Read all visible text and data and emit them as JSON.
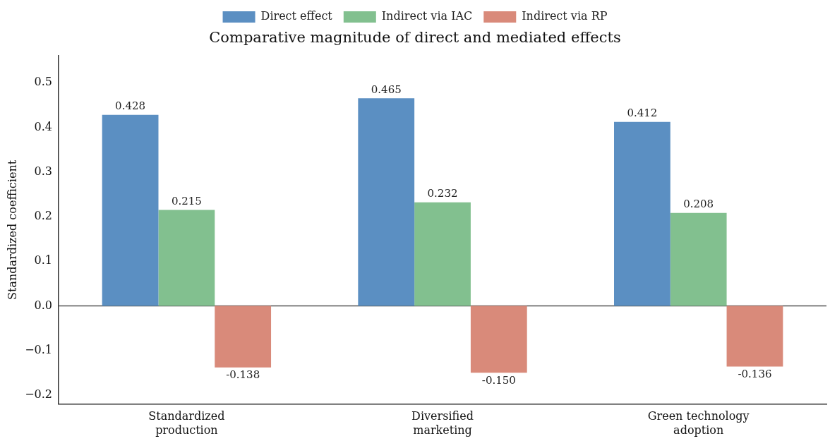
{
  "chart_data": {
    "type": "bar",
    "title": "Comparative magnitude of direct and mediated effects",
    "ylabel": "Standardized coefficient",
    "categories": [
      "Standardized production",
      "Diversified marketing",
      "Green technology adoption"
    ],
    "series": [
      {
        "name": "Direct effect",
        "color": "#5b8fc2",
        "values": [
          0.428,
          0.465,
          0.412
        ]
      },
      {
        "name": "Indirect via IAC",
        "color": "#82c08f",
        "values": [
          0.215,
          0.232,
          0.208
        ]
      },
      {
        "name": "Indirect via RP",
        "color": "#d98a7a",
        "values": [
          -0.138,
          -0.15,
          -0.136
        ],
        "value_labels": [
          "-0.138",
          "-0.150",
          "-0.136"
        ]
      }
    ],
    "ylim": [
      -0.22,
      0.56
    ],
    "yticks": [
      {
        "value": -0.2,
        "label": "−0.2"
      },
      {
        "value": -0.1,
        "label": "−0.1"
      },
      {
        "value": 0,
        "label": "0.0"
      },
      {
        "value": 0.1,
        "label": "0.1"
      },
      {
        "value": 0.2,
        "label": "0.2"
      },
      {
        "value": 0.3,
        "label": "0.3"
      },
      {
        "value": 0.4,
        "label": "0.4"
      },
      {
        "value": 0.5,
        "label": "0.5"
      }
    ],
    "ref_lines": [
      {
        "axis": "y",
        "value": 0,
        "color": "#555555"
      }
    ],
    "data_labels": true,
    "grid": false,
    "legend": "top"
  }
}
